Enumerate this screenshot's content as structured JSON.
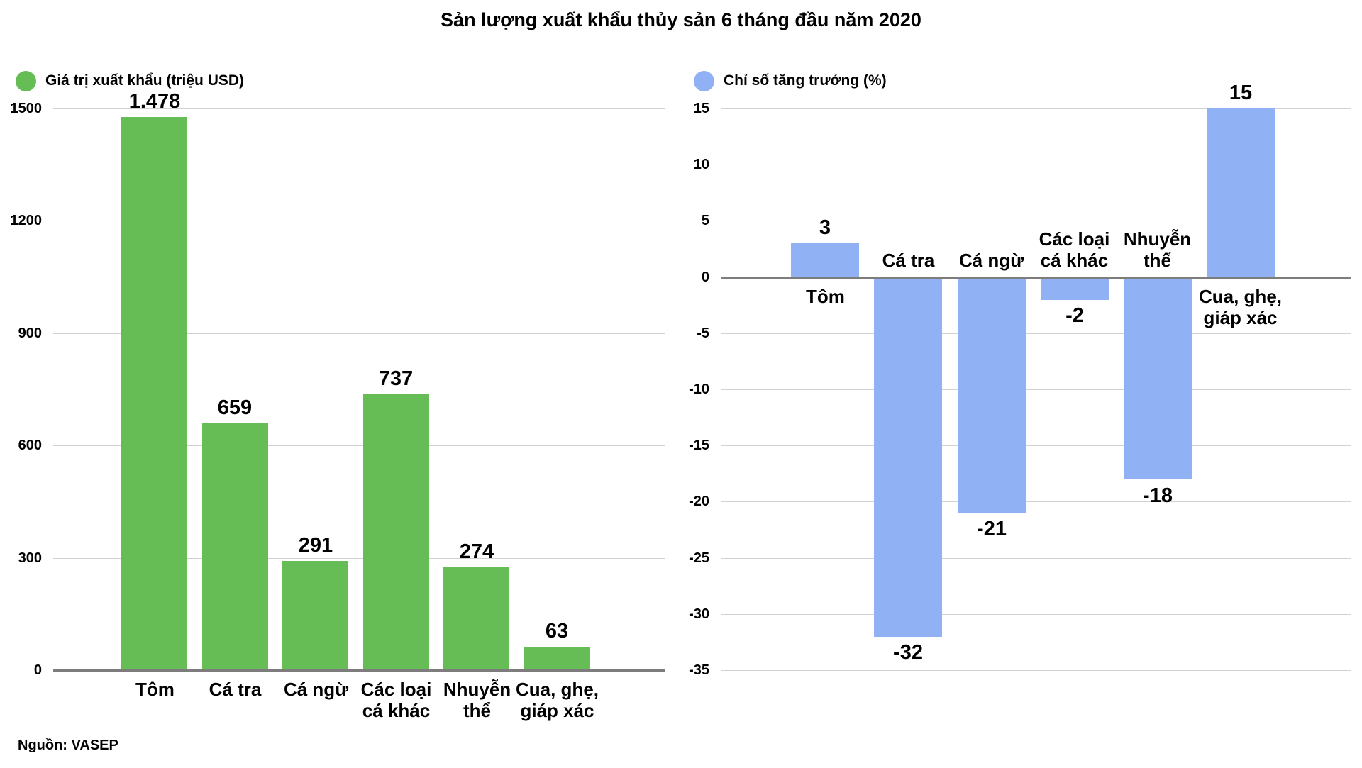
{
  "page": {
    "title": "Sản lượng xuất khẩu thủy sản 6 tháng đầu năm 2020",
    "source": "Nguồn: VASEP"
  },
  "colors": {
    "green": "#67bd55",
    "blue": "#91b1f5",
    "gridline": "#d2d2d2",
    "zero_axis": "#7d7d7d",
    "text": "#000000"
  },
  "chart_data": [
    {
      "type": "bar",
      "legend": "Giá trị xuất khẩu (triệu USD)",
      "legend_position": "top-left",
      "color": "#67bd55",
      "categories": [
        "Tôm",
        "Cá tra",
        "Cá ngừ",
        "Các loại cá khác",
        "Nhuyễn thể",
        "Cua, ghẹ, giáp xác"
      ],
      "category_lines": [
        [
          "Tôm"
        ],
        [
          "Cá tra"
        ],
        [
          "Cá ngừ"
        ],
        [
          "Các loại",
          "cá khác"
        ],
        [
          "Nhuyễn",
          "thể"
        ],
        [
          "Cua, ghẹ,",
          "giáp xác"
        ]
      ],
      "values": [
        1478,
        659,
        291,
        737,
        274,
        63
      ],
      "data_labels": [
        "1.478",
        "659",
        "291",
        "737",
        "274",
        "63"
      ],
      "xlabel": "",
      "ylabel": "",
      "ylim": [
        0,
        1500
      ],
      "yticks": [
        1500,
        1200,
        900,
        600,
        300,
        0
      ],
      "grid": true,
      "zero_axis": true,
      "categories_below_plot": true
    },
    {
      "type": "bar",
      "legend": "Chỉ số tăng trưởng (%)",
      "legend_position": "top-left",
      "color": "#91b1f5",
      "categories": [
        "Tôm",
        "Cá tra",
        "Cá ngừ",
        "Các loại cá khác",
        "Nhuyễn thể",
        "Cua, ghẹ, giáp xác"
      ],
      "category_lines": [
        [
          "Tôm"
        ],
        [
          "Cá tra"
        ],
        [
          "Cá ngừ"
        ],
        [
          "Các loại",
          "cá khác"
        ],
        [
          "Nhuyễn",
          "thể"
        ],
        [
          "Cua, ghẹ,",
          "giáp xác"
        ]
      ],
      "values": [
        3,
        -32,
        -21,
        -2,
        -18,
        15
      ],
      "data_labels": [
        "3",
        "-32",
        "-21",
        "-2",
        "-18",
        "15"
      ],
      "xlabel": "",
      "ylabel": "",
      "ylim": [
        -35,
        15
      ],
      "yticks": [
        15,
        10,
        5,
        0,
        -5,
        -10,
        -15,
        -20,
        -25,
        -30,
        -35
      ],
      "grid": true,
      "zero_axis": true,
      "categories_below_plot": false
    }
  ]
}
